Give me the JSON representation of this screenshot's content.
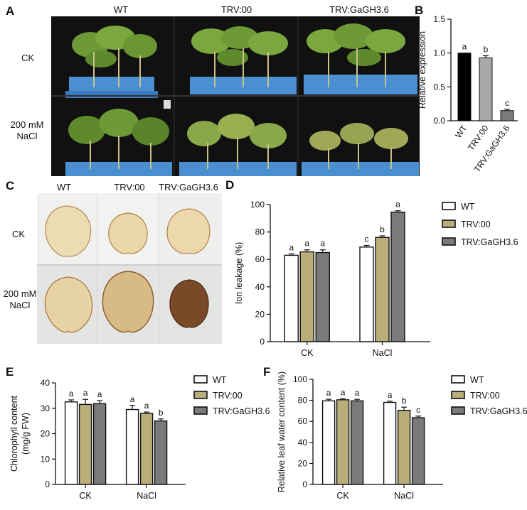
{
  "figure": {
    "panels": {
      "A": {
        "letter": "A",
        "column_labels": [
          "WT",
          "TRV:00",
          "TRV:GaGH3.6"
        ],
        "row_labels": [
          "CK",
          "200 mM\nNaCl"
        ]
      },
      "C": {
        "letter": "C",
        "column_labels": [
          "WT",
          "TRV:00",
          "TRV:GaGH3.6"
        ],
        "row_labels": [
          "CK",
          "200 mM\nNaCl"
        ]
      }
    },
    "colors": {
      "WT": "#ffffff",
      "TRV:00": "#b9ae7a",
      "TRV:GaGH3.6": "#7a7a7a",
      "B_WT": "#000000",
      "B_TRV00": "#a9a9a9",
      "B_GH": "#7a7a7a"
    },
    "legend": [
      "WT",
      "TRV:00",
      "TRV:GaGH3.6"
    ]
  },
  "chart_data": [
    {
      "panel": "B",
      "type": "bar",
      "categories": [
        "WT",
        "TRV:00",
        "TRV:GaGH3.6"
      ],
      "values": [
        1.0,
        0.93,
        0.15
      ],
      "errors": [
        0.0,
        0.03,
        0.02
      ],
      "letters": [
        "a",
        "b",
        "c"
      ],
      "ylabel": "Relative expression",
      "ylim": [
        0,
        1.5
      ],
      "yticks": [
        "0.0",
        "0.5",
        "1.0",
        "1.5"
      ]
    },
    {
      "panel": "D",
      "type": "bar",
      "groups": [
        "CK",
        "NaCl"
      ],
      "series": [
        {
          "name": "WT",
          "values": [
            63,
            69
          ],
          "errors": [
            1,
            1.2
          ],
          "letters": [
            "a",
            "c"
          ]
        },
        {
          "name": "TRV:00",
          "values": [
            65.5,
            76
          ],
          "errors": [
            1.5,
            1.2
          ],
          "letters": [
            "a",
            "b"
          ]
        },
        {
          "name": "TRV:GaGH3.6",
          "values": [
            65,
            94.5
          ],
          "errors": [
            2,
            1
          ],
          "letters": [
            "a",
            "a"
          ]
        }
      ],
      "ylabel": "Ion leakage (%)",
      "ylim": [
        0,
        100
      ],
      "yticks": [
        "0",
        "20",
        "40",
        "60",
        "80",
        "100"
      ],
      "legend": "right"
    },
    {
      "panel": "E",
      "type": "bar",
      "groups": [
        "CK",
        "NaCl"
      ],
      "series": [
        {
          "name": "WT",
          "values": [
            32.5,
            29.5
          ],
          "errors": [
            0.8,
            1.6
          ],
          "letters": [
            "a",
            "a"
          ]
        },
        {
          "name": "TRV:00",
          "values": [
            31.5,
            28
          ],
          "errors": [
            2,
            0.5
          ],
          "letters": [
            "a",
            "a"
          ]
        },
        {
          "name": "TRV:GaGH3.6",
          "values": [
            31.8,
            25
          ],
          "errors": [
            1.2,
            0.8
          ],
          "letters": [
            "a",
            "b"
          ]
        }
      ],
      "ylabel": "Chlorophyll content\n(mg/g FW)",
      "ylim": [
        0,
        40
      ],
      "yticks": [
        "0",
        "10",
        "20",
        "30",
        "40"
      ],
      "legend": "right"
    },
    {
      "panel": "F",
      "type": "bar",
      "groups": [
        "CK",
        "NaCl"
      ],
      "series": [
        {
          "name": "WT",
          "values": [
            79.5,
            78
          ],
          "errors": [
            1.5,
            1.2
          ],
          "letters": [
            "a",
            "a"
          ]
        },
        {
          "name": "TRV:00",
          "values": [
            80.5,
            70.5
          ],
          "errors": [
            1,
            3
          ],
          "letters": [
            "a",
            "b"
          ]
        },
        {
          "name": "TRV:GaGH3.6",
          "values": [
            79.5,
            63.5
          ],
          "errors": [
            1.5,
            1.5
          ],
          "letters": [
            "a",
            "c"
          ]
        }
      ],
      "ylabel": "Relative leaf water content (%)",
      "ylim": [
        0,
        100
      ],
      "yticks": [
        "0",
        "20",
        "40",
        "60",
        "80",
        "100"
      ],
      "legend": "right"
    }
  ]
}
